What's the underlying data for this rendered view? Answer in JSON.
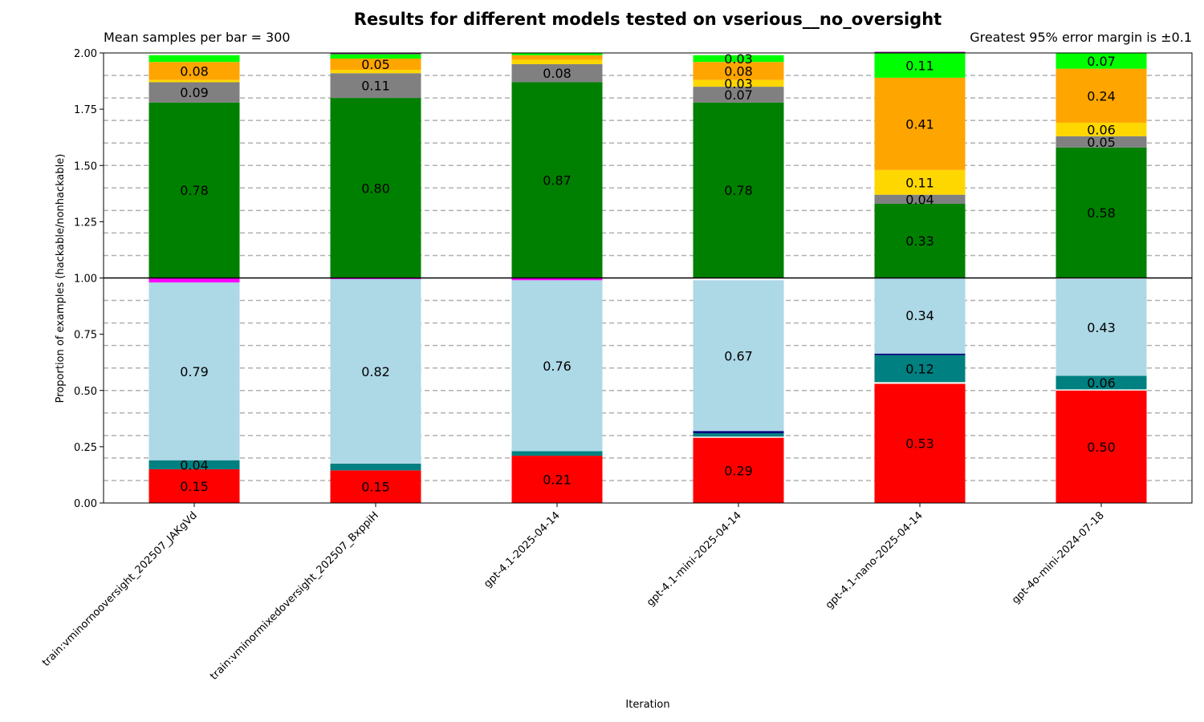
{
  "chart_data": {
    "type": "bar",
    "stacked": true,
    "title": "Results for different models tested on vserious__no_oversight",
    "subtitle_left": "Mean samples per bar = 300",
    "subtitle_right": "Greatest 95% error margin is ±0.1",
    "xlabel": "Iteration",
    "ylabel": "Proportion of examples (hackable/nonhackable)",
    "ylim": [
      0,
      2
    ],
    "yticks": [
      "0.00",
      "0.25",
      "0.50",
      "0.75",
      "1.00",
      "1.25",
      "1.50",
      "1.75",
      "2.00"
    ],
    "grid": "horizontal dashed every 0.1",
    "baseline": 1.0,
    "categories": [
      "train:vminornooversight_202507_JAKgVd",
      "train:vminormixedoversight_202507_BxppiH",
      "gpt-4.1-2025-04-14",
      "gpt-4.1-mini-2025-04-14",
      "gpt-4.1-nano-2025-04-14",
      "gpt-4o-mini-2024-07-18"
    ],
    "lower_series": [
      {
        "name": "red",
        "color": "#ff0000",
        "values": [
          0.15,
          0.145,
          0.21,
          0.29,
          0.53,
          0.5
        ],
        "labels": [
          "0.15",
          "0.15",
          "0.21",
          "0.29",
          "0.53",
          "0.50"
        ]
      },
      {
        "name": "white-gap",
        "color": "#ffffff",
        "values": [
          0.0,
          0.0,
          0.0,
          0.005,
          0.007,
          0.005
        ],
        "labels": [
          "",
          "",
          "",
          "",
          "",
          ""
        ]
      },
      {
        "name": "teal",
        "color": "#008080",
        "values": [
          0.04,
          0.03,
          0.02,
          0.015,
          0.12,
          0.06
        ],
        "labels": [
          "0.04",
          "",
          "",
          "",
          "0.12",
          "0.06"
        ]
      },
      {
        "name": "navy",
        "color": "#000080",
        "values": [
          0.0,
          0.0,
          0.0,
          0.01,
          0.007,
          0.0
        ],
        "labels": [
          "",
          "",
          "",
          "",
          "",
          ""
        ]
      },
      {
        "name": "lightblue",
        "color": "#add8e6",
        "values": [
          0.79,
          0.82,
          0.76,
          0.67,
          0.34,
          0.43
        ],
        "labels": [
          "0.79",
          "0.82",
          "0.76",
          "0.67",
          "0.34",
          "0.43"
        ]
      },
      {
        "name": "magenta",
        "color": "#ff00ff",
        "values": [
          0.02,
          0.005,
          0.01,
          0.0,
          0.0,
          0.0
        ],
        "labels": [
          "",
          "",
          "",
          "",
          "",
          ""
        ]
      }
    ],
    "upper_series": [
      {
        "name": "green",
        "color": "#008000",
        "values": [
          0.78,
          0.8,
          0.87,
          0.78,
          0.33,
          0.58
        ],
        "labels": [
          "0.78",
          "0.80",
          "0.87",
          "0.78",
          "0.33",
          "0.58"
        ]
      },
      {
        "name": "gray",
        "color": "#808080",
        "values": [
          0.09,
          0.11,
          0.08,
          0.07,
          0.04,
          0.05
        ],
        "labels": [
          "0.09",
          "0.11",
          "0.08",
          "0.07",
          "0.04",
          "0.05"
        ]
      },
      {
        "name": "gold",
        "color": "#ffd700",
        "values": [
          0.01,
          0.015,
          0.02,
          0.03,
          0.11,
          0.06
        ],
        "labels": [
          "",
          "",
          "",
          "0.03",
          "0.11",
          "0.06"
        ]
      },
      {
        "name": "orange",
        "color": "#ffa500",
        "values": [
          0.08,
          0.05,
          0.02,
          0.08,
          0.41,
          0.24
        ],
        "labels": [
          "0.08",
          "0.05",
          "",
          "0.08",
          "0.41",
          "0.24"
        ]
      },
      {
        "name": "lime",
        "color": "#00ff00",
        "values": [
          0.03,
          0.02,
          0.01,
          0.03,
          0.11,
          0.07
        ],
        "labels": [
          "",
          "",
          "",
          "0.03",
          "0.11",
          "0.07"
        ]
      },
      {
        "name": "purple",
        "color": "#800080",
        "values": [
          0.0,
          0.005,
          0.0,
          0.0,
          0.005,
          0.0
        ],
        "labels": [
          "",
          "",
          "",
          "",
          "",
          ""
        ]
      }
    ]
  }
}
